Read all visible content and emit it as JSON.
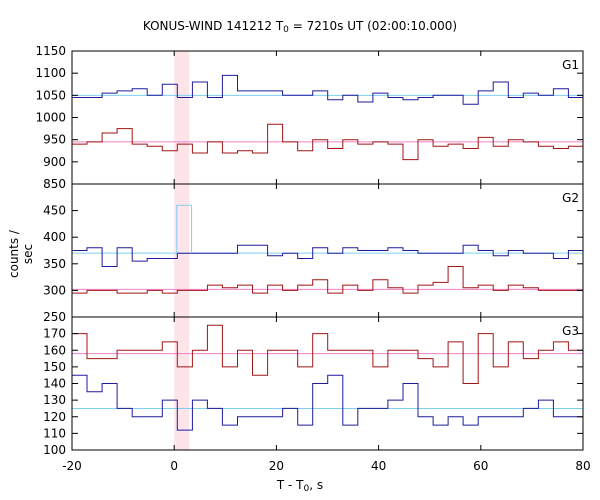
{
  "title_parts": {
    "pre": "KONUS-WIND 141212 T",
    "sub": "0",
    "post": " = 7210s UT (02:00:10.000)"
  },
  "xlabel_parts": {
    "pre": "T - T",
    "sub": "0",
    "post": ", s"
  },
  "ylabel": "counts / sec",
  "colors": {
    "blue": "#1c1c9c",
    "red": "#a01414",
    "cyan": "#7fd0f0",
    "pink": "#f080c8",
    "highlight": "#fde4e8",
    "spike": "#7fd0f0"
  },
  "chart_data": {
    "type": "line",
    "xlim": [
      -20,
      80
    ],
    "xticks": [
      -20,
      0,
      20,
      40,
      60,
      80
    ],
    "bin_width": 2.944,
    "x_start": -20,
    "highlight_interval": [
      0,
      2.944
    ],
    "panels": [
      {
        "label": "G1",
        "ylim": [
          850,
          1150
        ],
        "yticks": [
          850,
          900,
          950,
          1000,
          1050,
          1100,
          1150
        ],
        "series": [
          {
            "color_key": "blue",
            "background_level": 1050,
            "values": [
              1045,
              1045,
              1055,
              1060,
              1065,
              1050,
              1075,
              1045,
              1080,
              1045,
              1095,
              1060,
              1060,
              1060,
              1050,
              1050,
              1060,
              1040,
              1050,
              1035,
              1055,
              1045,
              1040,
              1045,
              1050,
              1050,
              1030,
              1060,
              1080,
              1045,
              1055,
              1050,
              1065,
              1045,
              1025,
              1005,
              1070,
              1025,
              1075,
              1065,
              1050,
              1050,
              1060,
              1075,
              1030,
              1050,
              1045,
              1050
            ]
          },
          {
            "color_key": "red",
            "background_level": 945,
            "values": [
              940,
              945,
              965,
              975,
              940,
              935,
              925,
              940,
              920,
              945,
              920,
              925,
              920,
              985,
              945,
              925,
              950,
              930,
              950,
              940,
              945,
              940,
              905,
              950,
              935,
              940,
              930,
              955,
              935,
              950,
              945,
              935,
              930,
              935,
              950,
              930,
              930,
              945,
              935,
              940,
              935,
              945,
              940,
              930,
              940,
              920,
              945,
              965
            ]
          }
        ]
      },
      {
        "label": "G2",
        "ylim": [
          250,
          500
        ],
        "yticks": [
          250,
          300,
          350,
          400,
          450
        ],
        "series": [
          {
            "color_key": "blue",
            "background_level": 370,
            "values": [
              375,
              380,
              345,
              380,
              355,
              360,
              360,
              370,
              370,
              370,
              370,
              385,
              385,
              365,
              370,
              360,
              380,
              370,
              380,
              375,
              375,
              380,
              375,
              370,
              370,
              370,
              385,
              375,
              365,
              375,
              370,
              370,
              360,
              375,
              355,
              380,
              370,
              380,
              375,
              375,
              375,
              375,
              370,
              390,
              365,
              370,
              375,
              375
            ]
          },
          {
            "color_key": "red",
            "background_level": 302,
            "values": [
              295,
              300,
              300,
              295,
              295,
              300,
              295,
              300,
              300,
              310,
              305,
              310,
              295,
              310,
              300,
              310,
              320,
              295,
              310,
              300,
              320,
              305,
              295,
              310,
              315,
              345,
              305,
              310,
              300,
              310,
              305,
              300,
              300,
              300,
              290,
              305,
              305,
              305,
              320,
              310,
              300,
              300,
              295,
              310,
              325,
              310,
              325,
              325
            ]
          }
        ],
        "spike": {
          "x_start": 0.5,
          "x_end": 3.4,
          "value": 460
        }
      },
      {
        "label": "G3",
        "ylim": [
          100,
          180
        ],
        "yticks": [
          100,
          110,
          120,
          130,
          140,
          150,
          160,
          170
        ],
        "series": [
          {
            "color_key": "red",
            "background_level": 158,
            "values": [
              170,
              155,
              155,
              160,
              160,
              160,
              165,
              150,
              160,
              175,
              150,
              160,
              145,
              160,
              160,
              150,
              170,
              160,
              160,
              160,
              150,
              160,
              160,
              155,
              150,
              165,
              140,
              170,
              150,
              165,
              155,
              160,
              165,
              160,
              165,
              150,
              160,
              150,
              165,
              160,
              160,
              160,
              155,
              165,
              155,
              160,
              175,
              160
            ]
          },
          {
            "color_key": "blue",
            "background_level": 125,
            "values": [
              145,
              135,
              140,
              125,
              120,
              120,
              130,
              112,
              130,
              125,
              115,
              120,
              120,
              120,
              125,
              115,
              140,
              145,
              115,
              125,
              125,
              130,
              140,
              120,
              115,
              120,
              115,
              120,
              120,
              120,
              125,
              130,
              120,
              120,
              125,
              115,
              120,
              115,
              125,
              120,
              120,
              120,
              120,
              115,
              120,
              115,
              120,
              120
            ]
          }
        ]
      }
    ]
  }
}
